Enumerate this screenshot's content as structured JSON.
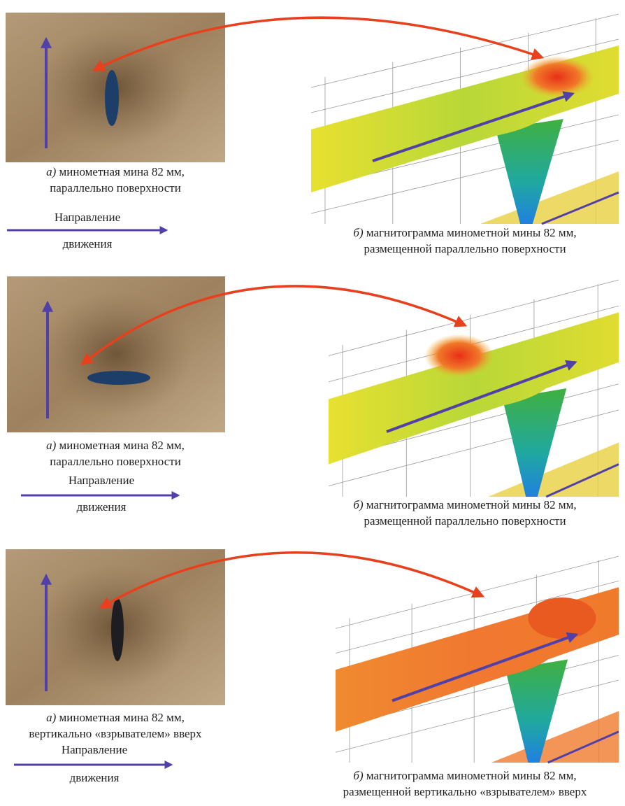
{
  "panels": [
    {
      "photo_caption": {
        "letter": "а)",
        "line1": "минометная мина 82 мм,",
        "line2": "параллельно поверхности"
      },
      "direction": {
        "line1": "Направление",
        "line2": "движения"
      },
      "map_caption": {
        "letter": "б)",
        "line1": "магнитограмма минометной мины 82 мм,",
        "line2": "размещенной параллельно поверхности"
      }
    },
    {
      "photo_caption": {
        "letter": "а)",
        "line1": "минометная мина 82 мм,",
        "line2": "параллельно поверхности"
      },
      "direction": {
        "line1": "Направление",
        "line2": "движения"
      },
      "map_caption": {
        "letter": "б)",
        "line1": "магнитограмма минометной мины 82 мм,",
        "line2": "размещенной параллельно поверхности"
      }
    },
    {
      "photo_caption": {
        "letter": "а)",
        "line1": "минометная мина 82 мм,",
        "line2": "вертикально «взрывателем» вверх"
      },
      "direction": {
        "line1": "Направление",
        "line2": "движения"
      },
      "map_caption": {
        "letter": "б)",
        "line1": "магнитограмма минометной мины 82 мм,",
        "line2": "размещенной вертикально «взрывателем» вверх"
      }
    }
  ]
}
